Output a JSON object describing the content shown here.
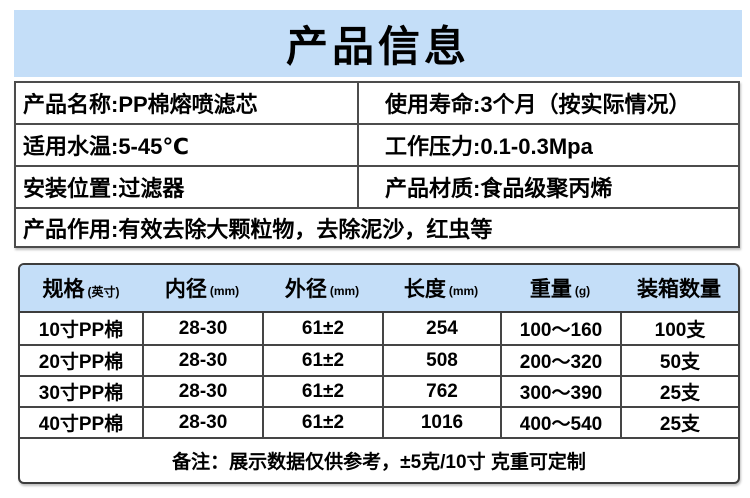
{
  "colors": {
    "banner_bg": "#c4def8",
    "header_bg": "#c4def8",
    "border_dark": "#3d3d3d",
    "text": "#000000",
    "page_bg": "#ffffff"
  },
  "banner": {
    "title": "产品信息"
  },
  "info_table": {
    "rows": [
      [
        "产品名称:PP棉熔喷滤芯",
        "使用寿命:3个月（按实际情况）"
      ],
      [
        "适用水温:5-45℃",
        "工作压力:0.1-0.3Mpa"
      ],
      [
        "安装位置:过滤器",
        "产品材质:食品级聚丙烯"
      ]
    ],
    "function_row": "产品作用:有效去除大颗粒物，去除泥沙，红虫等"
  },
  "spec_table": {
    "headers": [
      {
        "label": "规格",
        "unit": "(英寸)"
      },
      {
        "label": "内径",
        "unit": "(mm)"
      },
      {
        "label": "外径",
        "unit": "(mm)"
      },
      {
        "label": "长度",
        "unit": "(mm)"
      },
      {
        "label": "重量",
        "unit": "(g)"
      },
      {
        "label": "装箱数量",
        "unit": ""
      }
    ],
    "rows": [
      [
        "10寸PP棉",
        "28-30",
        "61±2",
        "254",
        "100～160",
        "100支"
      ],
      [
        "20寸PP棉",
        "28-30",
        "61±2",
        "508",
        "200～320",
        "50支"
      ],
      [
        "30寸PP棉",
        "28-30",
        "61±2",
        "762",
        "300～390",
        "25支"
      ],
      [
        "40寸PP棉",
        "28-30",
        "61±2",
        "1016",
        "400～540",
        "25支"
      ]
    ],
    "note": "备注：展示数据仅供参考，±5克/10寸 克重可定制"
  }
}
